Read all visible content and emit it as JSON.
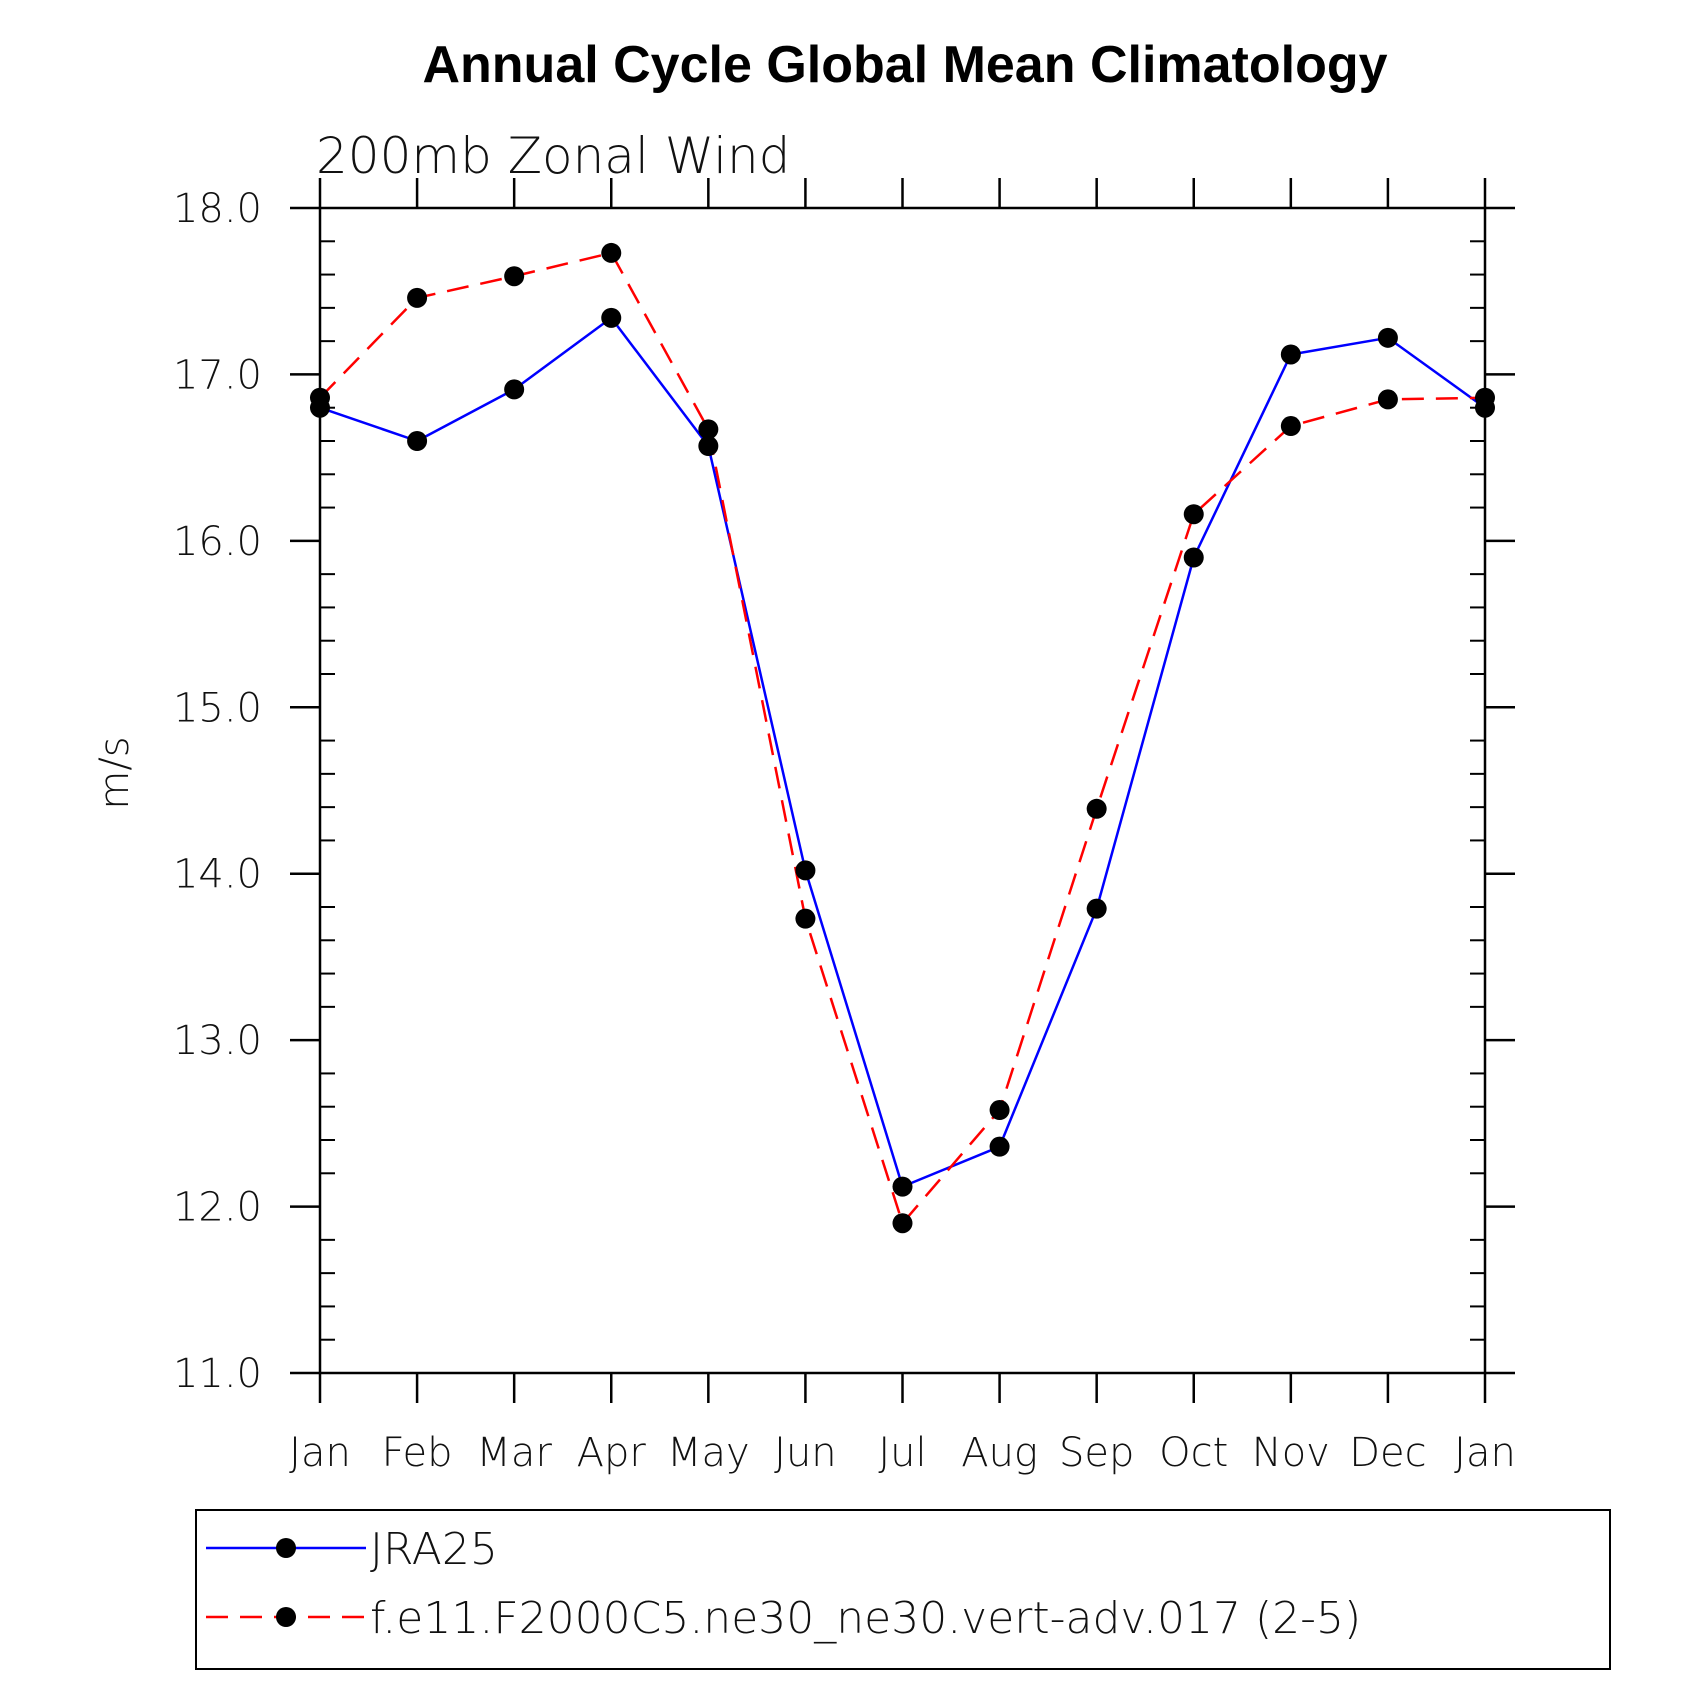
{
  "chart_data": {
    "type": "line",
    "title": "Annual Cycle Global Mean Climatology",
    "subtitle": "200mb Zonal Wind",
    "xlabel": "",
    "ylabel": "m/s",
    "categories": [
      "Jan",
      "Feb",
      "Mar",
      "Apr",
      "May",
      "Jun",
      "Jul",
      "Aug",
      "Sep",
      "Oct",
      "Nov",
      "Dec",
      "Jan"
    ],
    "ylim": [
      11.0,
      18.0
    ],
    "yticks": [
      "11.0",
      "12.0",
      "13.0",
      "14.0",
      "15.0",
      "16.0",
      "17.0",
      "18.0"
    ],
    "grid": false,
    "legend_position": "bottom",
    "series": [
      {
        "name": "JRA25",
        "color": "#0000ff",
        "style": "solid",
        "marker": "filled-circle",
        "values": [
          16.8,
          16.6,
          16.91,
          17.34,
          16.57,
          14.02,
          12.12,
          12.36,
          13.79,
          15.9,
          17.12,
          17.22,
          16.8
        ]
      },
      {
        "name": "f.e11.F2000C5.ne30_ne30.vert-adv.017 (2-5)",
        "color": "#ff0000",
        "style": "dashed",
        "marker": "filled-circle",
        "values": [
          16.86,
          17.46,
          17.59,
          17.73,
          16.67,
          13.73,
          11.9,
          12.58,
          14.39,
          16.16,
          16.69,
          16.85,
          16.86
        ]
      }
    ]
  }
}
